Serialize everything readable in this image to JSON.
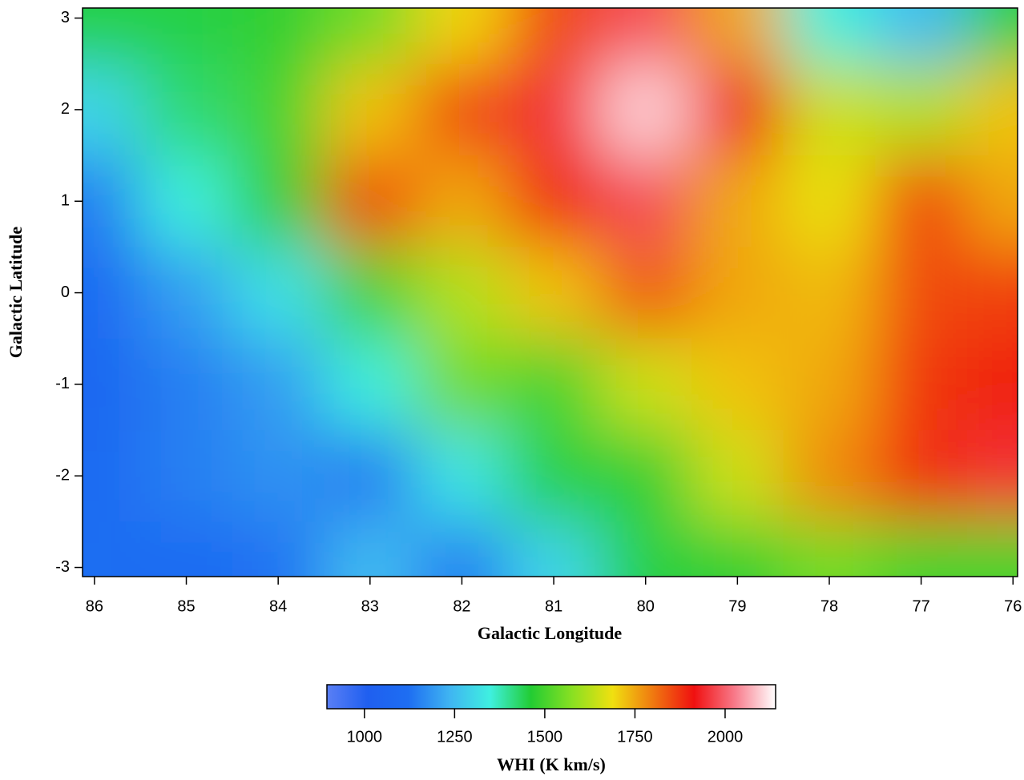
{
  "chart_data": {
    "type": "heatmap",
    "x_label": "Galactic Longitude",
    "y_label": "Galactic Latitude",
    "x": [
      86,
      85,
      84,
      83,
      82,
      81,
      80,
      79,
      78,
      77,
      76
    ],
    "y": [
      3,
      2,
      1,
      0,
      -1,
      -2,
      -3
    ],
    "z": [
      [
        1450,
        1450,
        1480,
        1550,
        1700,
        1850,
        1980,
        1750,
        1350,
        1250,
        1450
      ],
      [
        1300,
        1420,
        1500,
        1720,
        1850,
        1950,
        2100,
        1900,
        1650,
        1620,
        1720
      ],
      [
        1150,
        1350,
        1480,
        1850,
        1750,
        1880,
        1980,
        1750,
        1680,
        1850,
        1750
      ],
      [
        1100,
        1200,
        1320,
        1500,
        1620,
        1720,
        1830,
        1750,
        1730,
        1850,
        1860
      ],
      [
        1080,
        1150,
        1200,
        1350,
        1550,
        1500,
        1650,
        1720,
        1750,
        1870,
        1900
      ],
      [
        1100,
        1150,
        1180,
        1150,
        1330,
        1450,
        1480,
        1650,
        1780,
        1880,
        1950
      ],
      [
        1120,
        1100,
        1130,
        1250,
        1150,
        1300,
        1450,
        1480,
        1550,
        1500,
        1500
      ]
    ],
    "xlim": [
      86.13,
      75.95
    ],
    "xticks": [
      86,
      85,
      84,
      83,
      82,
      81,
      80,
      79,
      78,
      77,
      76
    ],
    "ylim": [
      -3.1,
      3.11
    ],
    "yticks": [
      3,
      2,
      1,
      0,
      -1,
      -2,
      -3
    ],
    "colorbar_label": "WHI (K km/s)",
    "clim": [
      896,
      2140
    ],
    "cticks": [
      1000,
      1250,
      1500,
      1750,
      2000
    ],
    "colormap": [
      "#5a7ff5",
      "#1f5ff0",
      "#1e6ef2",
      "#3fb4f2",
      "#3ff0e0",
      "#22cc33",
      "#88e022",
      "#f0e010",
      "#f07810",
      "#f01010",
      "#f87a8a",
      "#ffffff"
    ]
  }
}
